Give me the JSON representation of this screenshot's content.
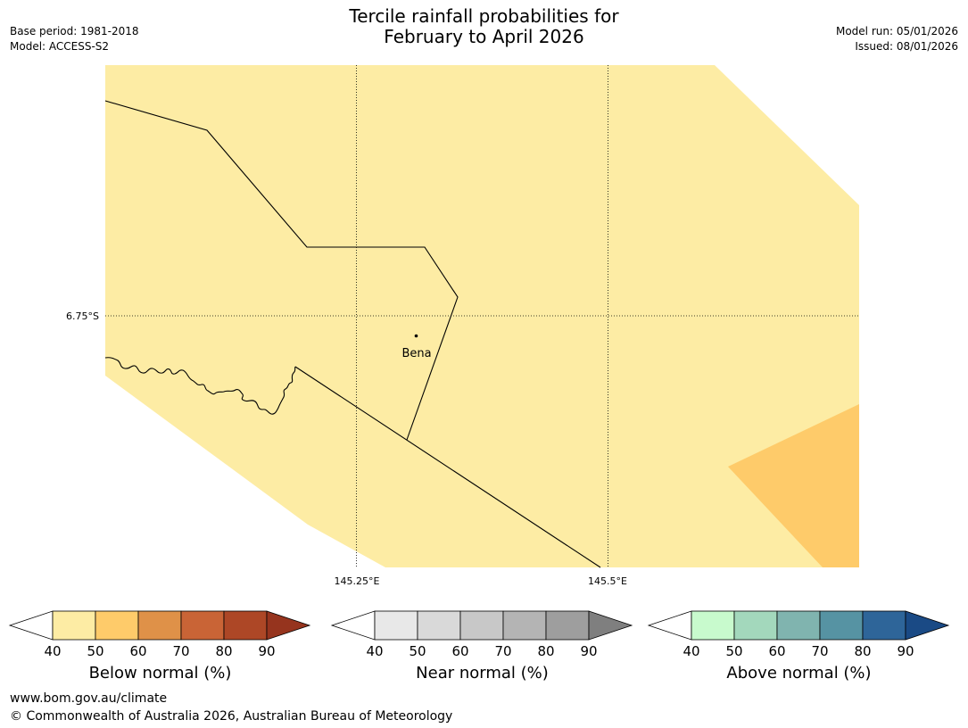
{
  "header": {
    "title_line1": "Tercile rainfall probabilities for",
    "title_line2": "February to April 2026",
    "base_period": "Base period: 1981-2018",
    "model": "Model: ACCESS-S2",
    "model_run": "Model run: 05/01/2026",
    "issued": "Issued: 08/01/2026"
  },
  "map": {
    "lat_label": "6.75°S",
    "lon_labels": [
      "145.25°E",
      "145.5°E"
    ],
    "place": "Bena",
    "colors": {
      "category_40_50": "#fdeca4",
      "category_50_60": "#fecb6a",
      "border": "#000000"
    }
  },
  "colorbars": [
    {
      "label": "Below normal (%)",
      "ticks": [
        "40",
        "50",
        "60",
        "70",
        "80",
        "90"
      ],
      "colors": [
        "#ffffff",
        "#fdeca4",
        "#fecb6a",
        "#df9148",
        "#c96436",
        "#ad4726",
        "#96341e"
      ]
    },
    {
      "label": "Near normal (%)",
      "ticks": [
        "40",
        "50",
        "60",
        "70",
        "80",
        "90"
      ],
      "colors": [
        "#ffffff",
        "#e8e8e8",
        "#d9d9d9",
        "#c8c8c8",
        "#b4b4b4",
        "#9e9e9e",
        "#7f7f7f"
      ]
    },
    {
      "label": "Above normal (%)",
      "ticks": [
        "40",
        "50",
        "60",
        "70",
        "80",
        "90"
      ],
      "colors": [
        "#ffffff",
        "#c8facd",
        "#a3d8bc",
        "#80b4af",
        "#5693a3",
        "#2e6599",
        "#1a4a85"
      ]
    }
  ],
  "footer": {
    "url": "www.bom.gov.au/climate",
    "copyright": "© Commonwealth of Australia 2026, Australian Bureau of Meteorology"
  }
}
